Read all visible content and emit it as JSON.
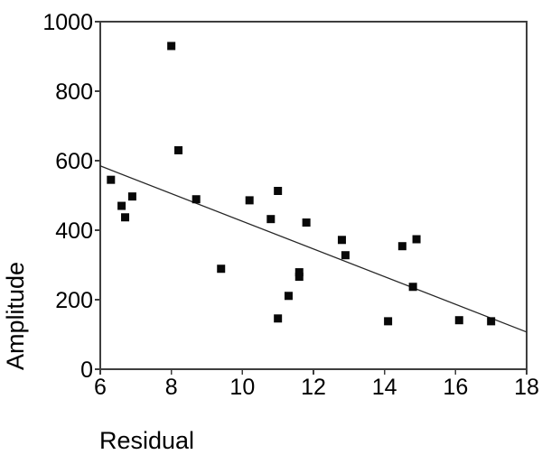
{
  "chart_data": {
    "type": "scatter",
    "title": "",
    "xlabel": "Residual",
    "ylabel": "Amplitude",
    "xlim": [
      6,
      18
    ],
    "ylim": [
      0,
      1000
    ],
    "xticks": [
      6,
      8,
      10,
      12,
      14,
      16,
      18
    ],
    "yticks": [
      0,
      200,
      400,
      600,
      800,
      1000
    ],
    "grid": false,
    "legend": null,
    "marker": "filled-square",
    "points": [
      [
        6.3,
        545
      ],
      [
        6.6,
        470
      ],
      [
        6.7,
        437
      ],
      [
        6.9,
        497
      ],
      [
        8.0,
        930
      ],
      [
        8.2,
        630
      ],
      [
        8.7,
        489
      ],
      [
        9.4,
        289
      ],
      [
        10.2,
        486
      ],
      [
        10.8,
        432
      ],
      [
        11.0,
        513
      ],
      [
        11.0,
        146
      ],
      [
        11.3,
        211
      ],
      [
        11.6,
        279
      ],
      [
        11.6,
        266
      ],
      [
        11.8,
        422
      ],
      [
        12.8,
        372
      ],
      [
        12.9,
        328
      ],
      [
        14.1,
        138
      ],
      [
        14.5,
        354
      ],
      [
        14.8,
        237
      ],
      [
        14.9,
        374
      ],
      [
        16.1,
        141
      ],
      [
        17.0,
        138
      ]
    ],
    "trendline": {
      "x1": 6,
      "y1": 585,
      "x2": 18,
      "y2": 107
    }
  },
  "colors": {
    "background": "#ffffff",
    "frame": "#3e3e3e",
    "marker": "#080808",
    "trendline": "#262626",
    "text": "#000000"
  }
}
